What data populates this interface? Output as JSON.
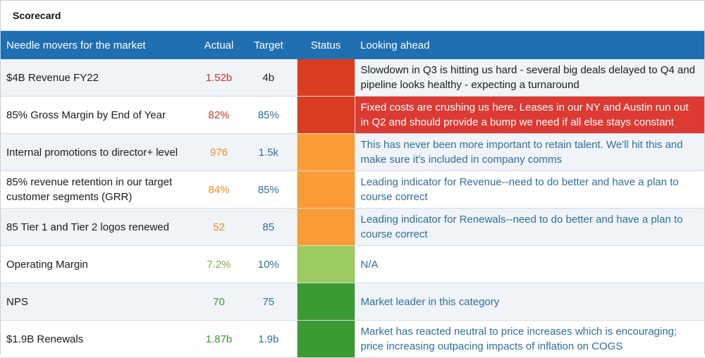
{
  "title": "Scorecard",
  "headers": {
    "metric": "Needle movers for the market",
    "actual": "Actual",
    "target": "Target",
    "status": "Status",
    "ahead": "Looking ahead"
  },
  "colors": {
    "header_bg": "#1f6fb2",
    "status_red": "#d93c1f",
    "status_orange": "#fb9b34",
    "status_lightgreen": "#9ccc60",
    "status_green": "#3a9a33",
    "highlight_red": "#dc3a32"
  },
  "rows": [
    {
      "metric": "$4B Revenue FY22",
      "actual": "1.52b",
      "actual_color": "#c0392b",
      "target": "4b",
      "target_color": "#222222",
      "status_color": "#d93c1f",
      "ahead": "Slowdown in Q3 is hitting us hard - several big deals delayed to Q4 and pipeline looks healthy - expecting a turnaround",
      "ahead_color": "#1b1b1b",
      "ahead_bg": ""
    },
    {
      "metric": "85% Gross Margin by End of Year",
      "actual": "82%",
      "actual_color": "#c0392b",
      "target": "85%",
      "target_color": "#2e6f9e",
      "status_color": "#d93c1f",
      "ahead": "Fixed costs are crushing us here. Leases in our NY and Austin run out in Q2 and should provide a bump we need if all else stays constant",
      "ahead_color": "#ffffff",
      "ahead_bg": "#dc3a32"
    },
    {
      "metric": "Internal promotions to director+ level",
      "actual": "976",
      "actual_color": "#f08a1c",
      "target": "1.5k",
      "target_color": "#2e6f9e",
      "status_color": "#fb9b34",
      "ahead": "This has never been more important to retain talent. We'll hit this and make sure it's included in company comms",
      "ahead_color": "#2e6f9e",
      "ahead_bg": ""
    },
    {
      "metric": "85% revenue retention in our target customer segments (GRR)",
      "actual": "84%",
      "actual_color": "#f08a1c",
      "target": "85%",
      "target_color": "#2e6f9e",
      "status_color": "#fb9b34",
      "ahead": "Leading indicator for Revenue--need to do better and have a plan to course correct",
      "ahead_color": "#2e6f9e",
      "ahead_bg": ""
    },
    {
      "metric": "85 Tier 1 and Tier 2 logos renewed",
      "actual": "52",
      "actual_color": "#f08a1c",
      "target": "85",
      "target_color": "#2e6f9e",
      "status_color": "#fb9b34",
      "ahead": "Leading indicator for Renewals--need to do better and have a plan to course correct",
      "ahead_color": "#2e6f9e",
      "ahead_bg": ""
    },
    {
      "metric": "Operating Margin",
      "actual": "7.2%",
      "actual_color": "#7cb342",
      "target": "10%",
      "target_color": "#2e6f9e",
      "status_color": "#9ccc60",
      "ahead": "N/A",
      "ahead_color": "#2e6f9e",
      "ahead_bg": ""
    },
    {
      "metric": "NPS",
      "actual": "70",
      "actual_color": "#3a9a33",
      "target": "75",
      "target_color": "#2e6f9e",
      "status_color": "#3a9a33",
      "ahead": "Market leader in this category",
      "ahead_color": "#2e6f9e",
      "ahead_bg": ""
    },
    {
      "metric": "$1.9B Renewals",
      "actual": "1.87b",
      "actual_color": "#3a9a33",
      "target": "1.9b",
      "target_color": "#2e6f9e",
      "status_color": "#3a9a33",
      "ahead": "Market has reacted neutral to price increases which is encouraging; price increasing outpacing impacts of inflation on COGS",
      "ahead_color": "#2e6f9e",
      "ahead_bg": ""
    }
  ]
}
